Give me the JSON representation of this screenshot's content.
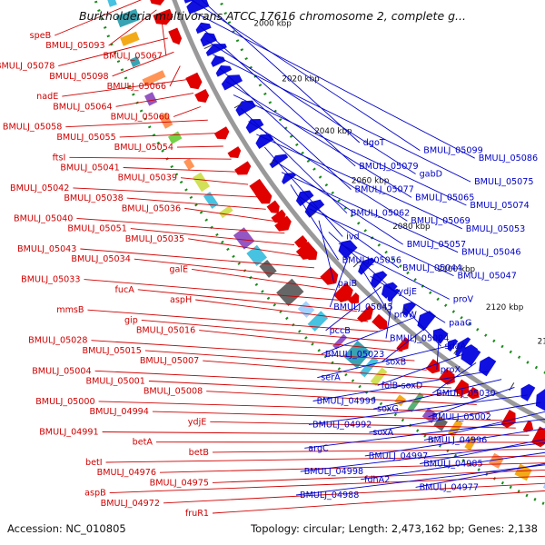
{
  "title": "Burkholderia multivorans ATCC 17616 chromosome 2, complete g...",
  "accession": "Accession: NC_010805",
  "topology": "Topology: circular; Length: 2,473,162 bp; Genes: 2,138",
  "kbp_ticks": [
    "2180 kbp",
    "2160 kbp",
    "2140 kbp",
    "2120 kbp",
    "2100 kbp",
    "2080 kbp",
    "2060 kbp",
    "2040 kbp",
    "2020 kbp",
    "2000 kbp",
    "1980 kbp"
  ],
  "forward_labels": [
    "speB",
    "BMULJ_05093",
    "BMULJ_05067",
    "BMULJ_05078",
    "BMULJ_05098",
    "BMULJ_05066",
    "nadE",
    "BMULJ_05064",
    "BMULJ_05060",
    "BMULJ_05058",
    "BMULJ_05055",
    "BMULJ_05054",
    "ftsI",
    "BMULJ_05041",
    "BMULJ_05039",
    "BMULJ_05042",
    "BMULJ_05038",
    "BMULJ_05036",
    "BMULJ_05040",
    "BMULJ_05051",
    "BMULJ_05035",
    "BMULJ_05043",
    "BMULJ_05034",
    "galE",
    "BMULJ_05033",
    "fucA",
    "aspH",
    "mmsB",
    "gip",
    "BMULJ_05016",
    "BMULJ_05028",
    "BMULJ_05015",
    "BMULJ_05007",
    "BMULJ_05004",
    "BMULJ_05001",
    "BMULJ_05008",
    "BMULJ_05000",
    "BMULJ_04994",
    "ydjE",
    "BMULJ_04991",
    "betA",
    "betB",
    "betI",
    "BMULJ_04976",
    "BMULJ_04975",
    "aspB",
    "BMULJ_04972",
    "fruR1"
  ],
  "reverse_labels": [
    "dgoT",
    "BMULJ_05099",
    "BMULJ_05086",
    "BMULJ_05079",
    "gabD",
    "BMULJ_05075",
    "BMULJ_05077",
    "BMULJ_05065",
    "BMULJ_05074",
    "BMULJ_05062",
    "BMULJ_05069",
    "BMULJ_05053",
    "ivd",
    "BMULJ_05057",
    "BMULJ_05046",
    "BMULJ_05056",
    "BMULJ_05044",
    "BMULJ_05047",
    "paiB",
    "ydjE",
    "proV",
    "BMULJ_05045",
    "proW",
    "paaG",
    "pccB",
    "BMULJ_05024",
    "sdaA",
    "BMULJ_05023",
    "soxB",
    "proX",
    "serA",
    "folB-soxD",
    "BMULJ_05030",
    "BMULJ_04999",
    "soxG",
    "BMULJ_05002",
    "BMULJ_04992",
    "soxA",
    "BMULJ_04996",
    "argC",
    "BMULJ_04997",
    "BMULJ_04985",
    "BMULJ_04998",
    "fdhA2",
    "BMULJ_04977",
    "BMULJ_04988"
  ],
  "colors": {
    "forward_cds": "#e00000",
    "reverse_cds": "#1010e0",
    "backbone": "#999999",
    "rna_dots": "#1a8a1a",
    "label_forward": "#d00000",
    "label_reverse": "#0000c8"
  }
}
